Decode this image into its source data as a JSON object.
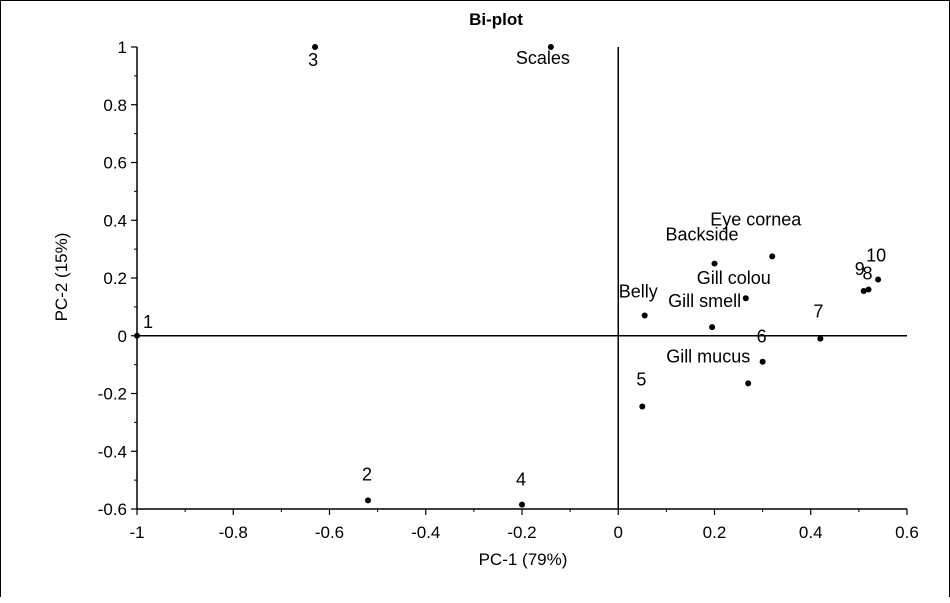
{
  "chart_data": {
    "type": "scatter",
    "title": "Bi-plot",
    "xlabel": "PC-1 (79%)",
    "ylabel": "PC-2 (15%)",
    "xlim": [
      -1,
      0.6
    ],
    "ylim": [
      -0.6,
      1
    ],
    "xticks": [
      "-1",
      "-0.8",
      "-0.6",
      "-0.4",
      "-0.2",
      "0",
      "0.2",
      "0.4",
      "0.6"
    ],
    "yticks": [
      "-0.6",
      "-0.4",
      "-0.2",
      "0",
      "0.2",
      "0.4",
      "0.6",
      "0.8",
      "1"
    ],
    "grid": false,
    "zero_lines": true,
    "point_color": "#000000",
    "series": [
      {
        "points": [
          {
            "label": "1",
            "x": -1.0,
            "y": 0.0
          },
          {
            "label": "2",
            "x": -0.52,
            "y": -0.57
          },
          {
            "label": "3",
            "x": -0.63,
            "y": 1.0
          },
          {
            "label": "4",
            "x": -0.2,
            "y": -0.585
          },
          {
            "label": "5",
            "x": 0.05,
            "y": -0.245
          },
          {
            "label": "6",
            "x": 0.3,
            "y": -0.09
          },
          {
            "label": "7",
            "x": 0.42,
            "y": -0.01
          },
          {
            "label": "8",
            "x": 0.52,
            "y": 0.16
          },
          {
            "label": "9",
            "x": 0.51,
            "y": 0.155
          },
          {
            "label": "10",
            "x": 0.54,
            "y": 0.195
          }
        ]
      },
      {
        "points": [
          {
            "label": "Scales",
            "x": -0.14,
            "y": 1.0
          },
          {
            "label": "Eye cornea",
            "x": 0.32,
            "y": 0.275
          },
          {
            "label": "Backside",
            "x": 0.2,
            "y": 0.25
          },
          {
            "label": "Gill colou",
            "x": 0.265,
            "y": 0.13
          },
          {
            "label": "Belly",
            "x": 0.055,
            "y": 0.07
          },
          {
            "label": "Gill smell",
            "x": 0.195,
            "y": 0.03
          },
          {
            "label": "Gill mucus",
            "x": 0.27,
            "y": -0.165
          }
        ]
      }
    ]
  }
}
